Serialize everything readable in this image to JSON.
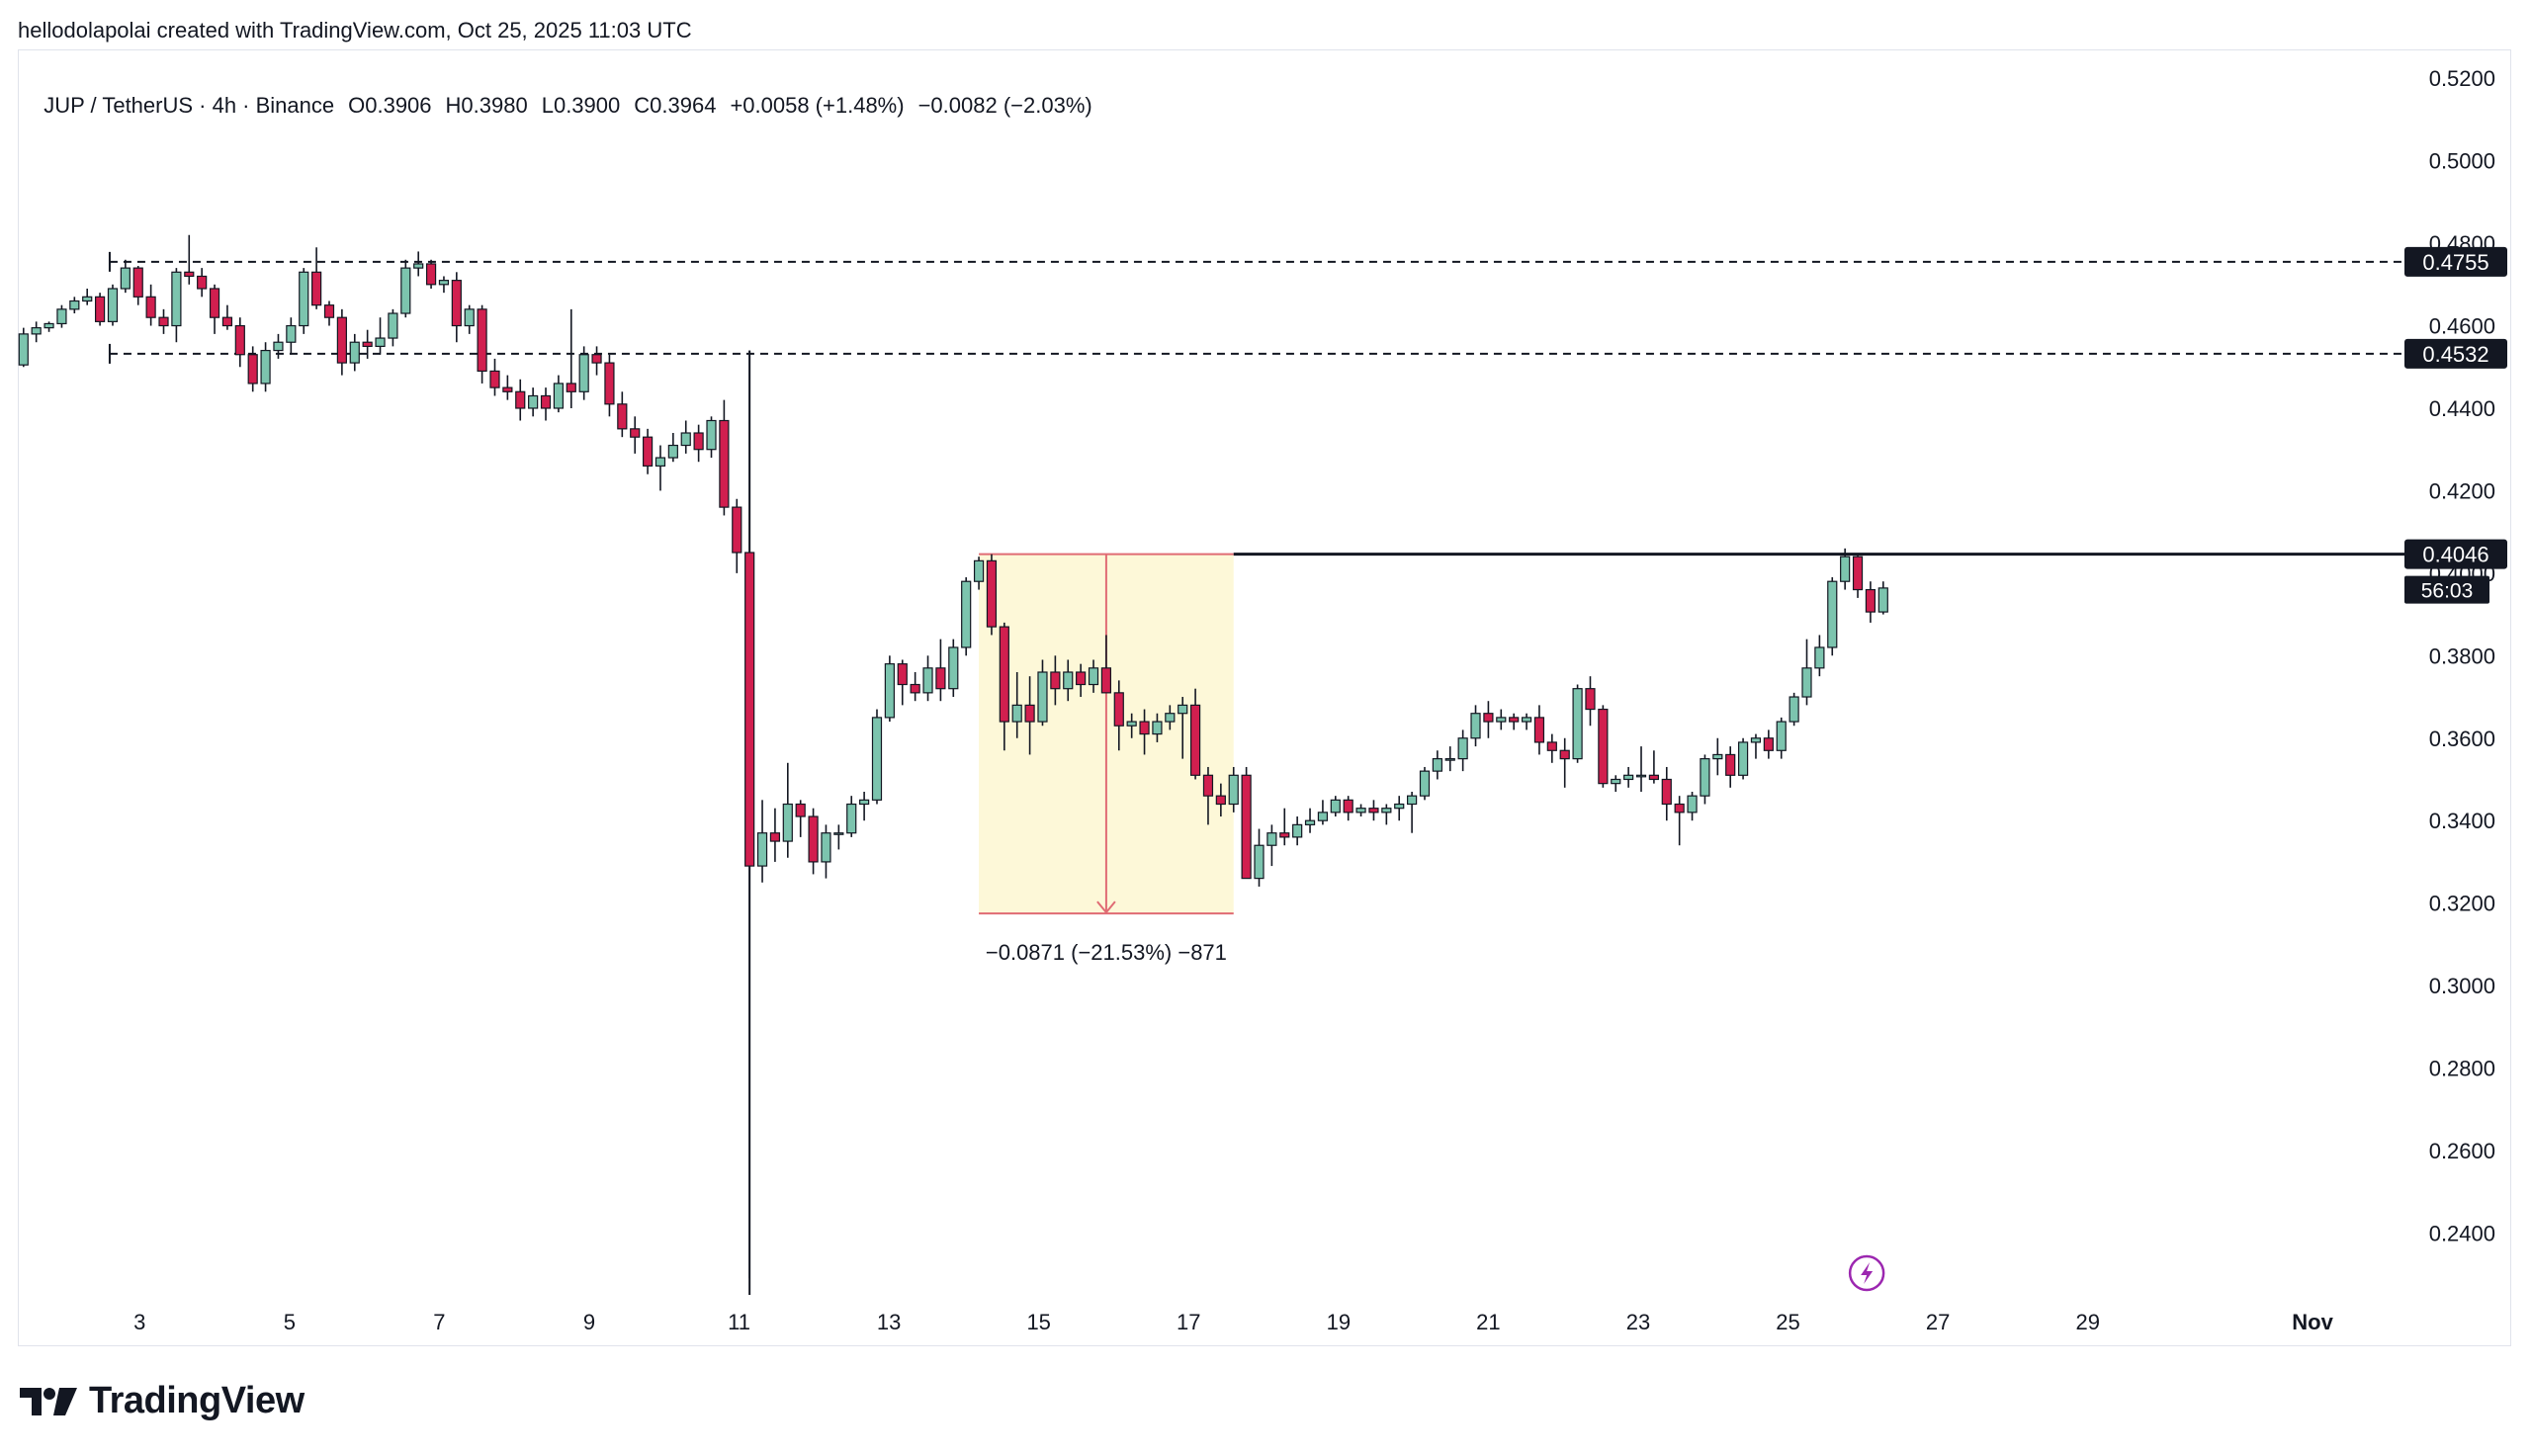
{
  "credit": "hellodolapolai created with TradingView.com, Oct 25, 2025 11:03 UTC",
  "legend": {
    "symbol": "JUP / TetherUS · 4h · Binance",
    "open": "O0.3906",
    "high": "H0.3980",
    "low": "L0.3900",
    "close": "C0.3964",
    "change": "+0.0058 (+1.48%)",
    "change2": "−0.0082 (−2.03%)"
  },
  "brand": "TradingView",
  "colors": {
    "up": "#7cc4ae",
    "down": "#d11f4f",
    "grid": "#e0e3eb",
    "range_fill": "#fdf8d8",
    "range_line": "#e06b74",
    "tag_bg": "#131722",
    "icon": "#9c27b0"
  },
  "chart_data": {
    "type": "candlestick",
    "timeframe": "4h",
    "ylim": [
      0.225,
      0.527
    ],
    "y_ticks": [
      "0.5200",
      "0.5000",
      "0.4800",
      "0.4600",
      "0.4400",
      "0.4200",
      "0.4000",
      "0.3800",
      "0.3600",
      "0.3400",
      "0.3200",
      "0.3000",
      "0.2800",
      "0.2600",
      "0.2400"
    ],
    "x_ticks": [
      {
        "label": "3",
        "day": 3
      },
      {
        "label": "5",
        "day": 5
      },
      {
        "label": "7",
        "day": 7
      },
      {
        "label": "9",
        "day": 9
      },
      {
        "label": "11",
        "day": 11
      },
      {
        "label": "13",
        "day": 13
      },
      {
        "label": "15",
        "day": 15
      },
      {
        "label": "17",
        "day": 17
      },
      {
        "label": "19",
        "day": 19
      },
      {
        "label": "21",
        "day": 21
      },
      {
        "label": "23",
        "day": 23
      },
      {
        "label": "25",
        "day": 25
      },
      {
        "label": "27",
        "day": 27
      },
      {
        "label": "29",
        "day": 29
      },
      {
        "label": "Nov",
        "day": 32
      }
    ],
    "x_range_days": [
      1.4,
      33.2
    ],
    "candles": [
      [
        1.45,
        0.4505,
        0.4595,
        0.45,
        0.458
      ],
      [
        1.62,
        0.458,
        0.461,
        0.456,
        0.4595
      ],
      [
        1.79,
        0.4595,
        0.461,
        0.4585,
        0.4605
      ],
      [
        1.96,
        0.4605,
        0.465,
        0.4595,
        0.464
      ],
      [
        2.13,
        0.464,
        0.467,
        0.463,
        0.466
      ],
      [
        2.3,
        0.466,
        0.469,
        0.465,
        0.467
      ],
      [
        2.47,
        0.467,
        0.468,
        0.46,
        0.461
      ],
      [
        2.64,
        0.461,
        0.47,
        0.46,
        0.469
      ],
      [
        2.81,
        0.469,
        0.476,
        0.468,
        0.474
      ],
      [
        2.98,
        0.474,
        0.4745,
        0.465,
        0.467
      ],
      [
        3.15,
        0.467,
        0.47,
        0.46,
        0.462
      ],
      [
        3.32,
        0.462,
        0.464,
        0.458,
        0.46
      ],
      [
        3.49,
        0.46,
        0.474,
        0.456,
        0.473
      ],
      [
        3.66,
        0.473,
        0.482,
        0.47,
        0.472
      ],
      [
        3.83,
        0.472,
        0.474,
        0.467,
        0.469
      ],
      [
        4.0,
        0.469,
        0.47,
        0.458,
        0.462
      ],
      [
        4.17,
        0.462,
        0.465,
        0.459,
        0.46
      ],
      [
        4.34,
        0.46,
        0.462,
        0.45,
        0.453
      ],
      [
        4.51,
        0.453,
        0.455,
        0.444,
        0.446
      ],
      [
        4.68,
        0.446,
        0.456,
        0.444,
        0.454
      ],
      [
        4.85,
        0.454,
        0.458,
        0.452,
        0.456
      ],
      [
        5.02,
        0.456,
        0.462,
        0.453,
        0.46
      ],
      [
        5.19,
        0.46,
        0.474,
        0.458,
        0.473
      ],
      [
        5.36,
        0.473,
        0.479,
        0.464,
        0.465
      ],
      [
        5.53,
        0.465,
        0.466,
        0.46,
        0.462
      ],
      [
        5.7,
        0.462,
        0.464,
        0.448,
        0.451
      ],
      [
        5.87,
        0.451,
        0.458,
        0.449,
        0.456
      ],
      [
        6.04,
        0.456,
        0.459,
        0.452,
        0.455
      ],
      [
        6.21,
        0.455,
        0.462,
        0.453,
        0.457
      ],
      [
        6.38,
        0.457,
        0.464,
        0.455,
        0.463
      ],
      [
        6.55,
        0.463,
        0.476,
        0.462,
        0.474
      ],
      [
        6.72,
        0.474,
        0.478,
        0.472,
        0.475
      ],
      [
        6.89,
        0.475,
        0.476,
        0.469,
        0.47
      ],
      [
        7.06,
        0.47,
        0.472,
        0.468,
        0.471
      ],
      [
        7.23,
        0.471,
        0.473,
        0.456,
        0.46
      ],
      [
        7.4,
        0.46,
        0.465,
        0.458,
        0.464
      ],
      [
        7.57,
        0.464,
        0.465,
        0.446,
        0.449
      ],
      [
        7.74,
        0.449,
        0.452,
        0.443,
        0.445
      ],
      [
        7.91,
        0.445,
        0.448,
        0.442,
        0.444
      ],
      [
        8.08,
        0.444,
        0.447,
        0.437,
        0.44
      ],
      [
        8.25,
        0.44,
        0.445,
        0.438,
        0.443
      ],
      [
        8.42,
        0.443,
        0.445,
        0.437,
        0.44
      ],
      [
        8.59,
        0.44,
        0.448,
        0.439,
        0.446
      ],
      [
        8.76,
        0.446,
        0.464,
        0.44,
        0.444
      ],
      [
        8.93,
        0.444,
        0.455,
        0.442,
        0.453
      ],
      [
        9.1,
        0.453,
        0.455,
        0.448,
        0.451
      ],
      [
        9.27,
        0.451,
        0.453,
        0.438,
        0.441
      ],
      [
        9.44,
        0.441,
        0.444,
        0.433,
        0.435
      ],
      [
        9.61,
        0.435,
        0.438,
        0.429,
        0.433
      ],
      [
        9.78,
        0.433,
        0.435,
        0.424,
        0.426
      ],
      [
        9.95,
        0.426,
        0.431,
        0.42,
        0.428
      ],
      [
        10.12,
        0.428,
        0.434,
        0.427,
        0.431
      ],
      [
        10.29,
        0.431,
        0.437,
        0.429,
        0.434
      ],
      [
        10.46,
        0.434,
        0.436,
        0.427,
        0.43
      ],
      [
        10.63,
        0.43,
        0.438,
        0.428,
        0.437
      ],
      [
        10.8,
        0.437,
        0.442,
        0.414,
        0.416
      ],
      [
        10.97,
        0.416,
        0.418,
        0.4,
        0.405
      ],
      [
        11.14,
        0.405,
        0.454,
        0.229,
        0.329
      ],
      [
        11.31,
        0.329,
        0.345,
        0.325,
        0.337
      ],
      [
        11.48,
        0.337,
        0.343,
        0.33,
        0.335
      ],
      [
        11.65,
        0.335,
        0.354,
        0.331,
        0.344
      ],
      [
        11.82,
        0.344,
        0.345,
        0.336,
        0.341
      ],
      [
        11.99,
        0.341,
        0.343,
        0.327,
        0.33
      ],
      [
        12.16,
        0.33,
        0.339,
        0.326,
        0.337
      ],
      [
        12.33,
        0.337,
        0.339,
        0.333,
        0.337
      ],
      [
        12.5,
        0.337,
        0.346,
        0.336,
        0.344
      ],
      [
        12.67,
        0.344,
        0.347,
        0.34,
        0.345
      ],
      [
        12.84,
        0.345,
        0.367,
        0.344,
        0.365
      ],
      [
        13.01,
        0.365,
        0.38,
        0.364,
        0.378
      ],
      [
        13.18,
        0.378,
        0.379,
        0.368,
        0.373
      ],
      [
        13.35,
        0.373,
        0.376,
        0.369,
        0.371
      ],
      [
        13.52,
        0.371,
        0.38,
        0.369,
        0.377
      ],
      [
        13.69,
        0.377,
        0.384,
        0.369,
        0.372
      ],
      [
        13.86,
        0.372,
        0.384,
        0.37,
        0.382
      ],
      [
        14.03,
        0.382,
        0.399,
        0.38,
        0.398
      ],
      [
        14.2,
        0.398,
        0.404,
        0.396,
        0.403
      ],
      [
        14.37,
        0.403,
        0.4046,
        0.385,
        0.387
      ],
      [
        14.54,
        0.387,
        0.388,
        0.357,
        0.364
      ],
      [
        14.71,
        0.364,
        0.376,
        0.36,
        0.368
      ],
      [
        14.88,
        0.368,
        0.375,
        0.356,
        0.364
      ],
      [
        15.05,
        0.364,
        0.379,
        0.363,
        0.376
      ],
      [
        15.22,
        0.376,
        0.38,
        0.368,
        0.372
      ],
      [
        15.39,
        0.372,
        0.379,
        0.369,
        0.376
      ],
      [
        15.56,
        0.376,
        0.378,
        0.37,
        0.373
      ],
      [
        15.73,
        0.373,
        0.379,
        0.371,
        0.377
      ],
      [
        15.9,
        0.377,
        0.385,
        0.372,
        0.371
      ],
      [
        16.07,
        0.371,
        0.374,
        0.357,
        0.363
      ],
      [
        16.24,
        0.363,
        0.366,
        0.36,
        0.364
      ],
      [
        16.41,
        0.364,
        0.367,
        0.356,
        0.361
      ],
      [
        16.58,
        0.361,
        0.366,
        0.359,
        0.364
      ],
      [
        16.75,
        0.364,
        0.368,
        0.362,
        0.366
      ],
      [
        16.92,
        0.366,
        0.37,
        0.355,
        0.368
      ],
      [
        17.09,
        0.368,
        0.372,
        0.35,
        0.351
      ],
      [
        17.26,
        0.351,
        0.353,
        0.339,
        0.346
      ],
      [
        17.43,
        0.346,
        0.349,
        0.341,
        0.344
      ],
      [
        17.6,
        0.344,
        0.353,
        0.342,
        0.351
      ],
      [
        17.77,
        0.351,
        0.353,
        0.326,
        0.326
      ],
      [
        17.94,
        0.326,
        0.338,
        0.324,
        0.334
      ],
      [
        18.11,
        0.334,
        0.339,
        0.329,
        0.337
      ],
      [
        18.28,
        0.337,
        0.343,
        0.334,
        0.336
      ],
      [
        18.45,
        0.336,
        0.341,
        0.334,
        0.339
      ],
      [
        18.62,
        0.339,
        0.343,
        0.337,
        0.34
      ],
      [
        18.79,
        0.34,
        0.345,
        0.339,
        0.342
      ],
      [
        18.96,
        0.342,
        0.346,
        0.341,
        0.345
      ],
      [
        19.13,
        0.345,
        0.346,
        0.34,
        0.342
      ],
      [
        19.3,
        0.342,
        0.344,
        0.341,
        0.343
      ],
      [
        19.47,
        0.343,
        0.345,
        0.34,
        0.342
      ],
      [
        19.64,
        0.342,
        0.344,
        0.339,
        0.343
      ],
      [
        19.81,
        0.343,
        0.346,
        0.34,
        0.344
      ],
      [
        19.98,
        0.344,
        0.347,
        0.337,
        0.346
      ],
      [
        20.15,
        0.346,
        0.353,
        0.345,
        0.352
      ],
      [
        20.32,
        0.352,
        0.357,
        0.35,
        0.355
      ],
      [
        20.49,
        0.355,
        0.358,
        0.352,
        0.355
      ],
      [
        20.66,
        0.355,
        0.362,
        0.352,
        0.36
      ],
      [
        20.83,
        0.36,
        0.368,
        0.358,
        0.366
      ],
      [
        21.0,
        0.366,
        0.369,
        0.36,
        0.364
      ],
      [
        21.17,
        0.364,
        0.367,
        0.362,
        0.365
      ],
      [
        21.34,
        0.365,
        0.366,
        0.362,
        0.364
      ],
      [
        21.51,
        0.364,
        0.366,
        0.362,
        0.365
      ],
      [
        21.68,
        0.365,
        0.368,
        0.356,
        0.359
      ],
      [
        21.85,
        0.359,
        0.361,
        0.354,
        0.357
      ],
      [
        22.02,
        0.357,
        0.36,
        0.348,
        0.355
      ],
      [
        22.19,
        0.355,
        0.373,
        0.354,
        0.372
      ],
      [
        22.36,
        0.372,
        0.375,
        0.363,
        0.367
      ],
      [
        22.53,
        0.367,
        0.368,
        0.348,
        0.349
      ],
      [
        22.7,
        0.349,
        0.351,
        0.347,
        0.35
      ],
      [
        22.87,
        0.35,
        0.353,
        0.348,
        0.351
      ],
      [
        23.04,
        0.351,
        0.358,
        0.347,
        0.351
      ],
      [
        23.21,
        0.351,
        0.357,
        0.349,
        0.35
      ],
      [
        23.38,
        0.35,
        0.353,
        0.34,
        0.344
      ],
      [
        23.55,
        0.344,
        0.346,
        0.334,
        0.342
      ],
      [
        23.72,
        0.342,
        0.347,
        0.34,
        0.346
      ],
      [
        23.89,
        0.346,
        0.356,
        0.344,
        0.355
      ],
      [
        24.06,
        0.355,
        0.36,
        0.351,
        0.356
      ],
      [
        24.23,
        0.356,
        0.358,
        0.348,
        0.351
      ],
      [
        24.4,
        0.351,
        0.36,
        0.35,
        0.359
      ],
      [
        24.57,
        0.359,
        0.361,
        0.355,
        0.36
      ],
      [
        24.74,
        0.36,
        0.362,
        0.355,
        0.357
      ],
      [
        24.91,
        0.357,
        0.365,
        0.355,
        0.364
      ],
      [
        25.08,
        0.364,
        0.371,
        0.363,
        0.37
      ],
      [
        25.25,
        0.37,
        0.384,
        0.368,
        0.377
      ],
      [
        25.42,
        0.377,
        0.385,
        0.375,
        0.382
      ],
      [
        25.59,
        0.382,
        0.399,
        0.38,
        0.398
      ],
      [
        25.76,
        0.398,
        0.406,
        0.396,
        0.404
      ],
      [
        25.93,
        0.404,
        0.4046,
        0.394,
        0.396
      ],
      [
        26.1,
        0.396,
        0.398,
        0.388,
        0.3906
      ],
      [
        26.27,
        0.3906,
        0.398,
        0.39,
        0.3964
      ]
    ],
    "horizontal_lines": [
      {
        "price": 0.4755,
        "label": "0.4755",
        "style": "dashed",
        "from_day": 2.6
      },
      {
        "price": 0.4532,
        "label": "0.4532",
        "style": "dashed",
        "from_day": 2.6
      },
      {
        "price": 0.4046,
        "label": "0.4046",
        "style": "solid",
        "from_day": 17.6
      }
    ],
    "countdown_label": "56:03",
    "price_range": {
      "from_day": 14.2,
      "to_day": 17.6,
      "top": 0.4046,
      "bottom": 0.3175,
      "label": "−0.0871 (−21.53%) −871"
    },
    "vertical_marker_day": 11.14
  }
}
